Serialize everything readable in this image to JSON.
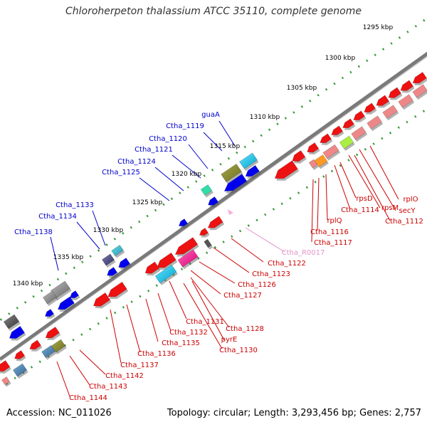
{
  "title": "Chloroherpeton thalassium ATCC 35110, complete genome",
  "accession": "Accession: NC_011026",
  "topology": "Topology: circular; Length: 3,293,456 bp; Genes: 2,757",
  "colors": {
    "backbone": "#7a7a7a",
    "blue_label": "#0000cc",
    "red_label": "#cc0000",
    "pink_label": "#e493c8",
    "ruler_dots": "#339933",
    "red_gene": "#ee1111",
    "pink_gene": "#ee8888",
    "blue_gene": "#0000ee"
  },
  "ruler_ticks": [
    "1295 kbp",
    "1300 kbp",
    "1305 kbp",
    "1310 kbp",
    "1315 kbp",
    "1320 kbp",
    "1325 kbp",
    "1330 kbp",
    "1335 kbp",
    "1340 kbp"
  ],
  "top_labels": [
    "guaA",
    "Ctha_1119",
    "Ctha_1120",
    "Ctha_1121",
    "Ctha_1124",
    "Ctha_1125",
    "Ctha_1133",
    "Ctha_1134",
    "Ctha_1138"
  ],
  "bottom_labels": [
    "rplO",
    "secY",
    "rpsM",
    "rpsD",
    "Ctha_1112",
    "Ctha_1114",
    "rplQ",
    "Ctha_1116",
    "Ctha_1117",
    "Ctha_R0017",
    "Ctha_1122",
    "Ctha_1123",
    "Ctha_1126",
    "Ctha_1127",
    "Ctha_1128",
    "Ctha_1131",
    "pyrE",
    "Ctha_1130",
    "Ctha_1132",
    "Ctha_1135",
    "Ctha_1136",
    "Ctha_1137",
    "Ctha_1142",
    "Ctha_1143",
    "Ctha_1144"
  ]
}
